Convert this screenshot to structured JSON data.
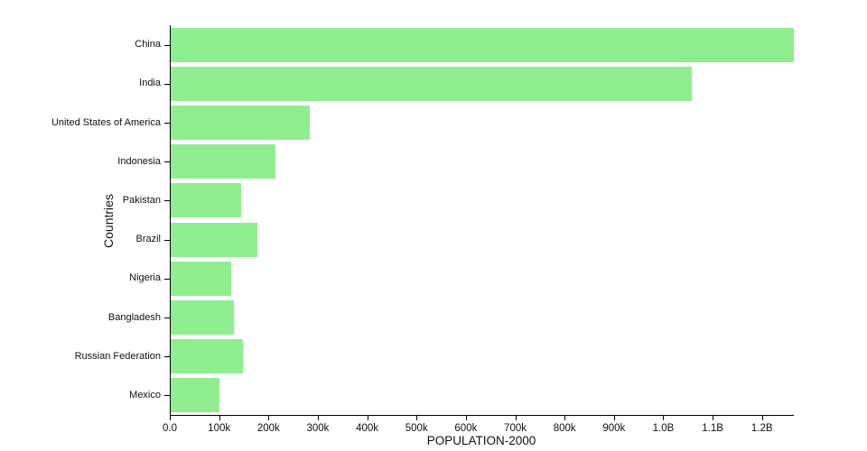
{
  "chart_data": {
    "type": "bar",
    "orientation": "horizontal",
    "title": "",
    "xlabel": "POPULATION-2000",
    "ylabel": "Countries",
    "bar_color": "#90ee90",
    "axis_color": "#000000",
    "categories": [
      "China",
      "India",
      "United States of America",
      "Indonesia",
      "Pakistan",
      "Brazil",
      "Nigeria",
      "Bangladesh",
      "Russian Federation",
      "Mexico"
    ],
    "values": [
      1262645,
      1056576,
      282162,
      211514,
      142344,
      174790,
      122284,
      127658,
      146597,
      98900
    ],
    "xlim": [
      0,
      1262645
    ],
    "tick_values": [
      0,
      100000,
      200000,
      300000,
      400000,
      500000,
      600000,
      700000,
      800000,
      900000,
      1000000,
      1100000,
      1200000
    ],
    "tick_labels": [
      "0.0",
      "100k",
      "200k",
      "300k",
      "400k",
      "500k",
      "600k",
      "700k",
      "800k",
      "900k",
      "1.0B",
      "1.1B",
      "1.2B"
    ],
    "grid": "off",
    "legend": "none"
  }
}
